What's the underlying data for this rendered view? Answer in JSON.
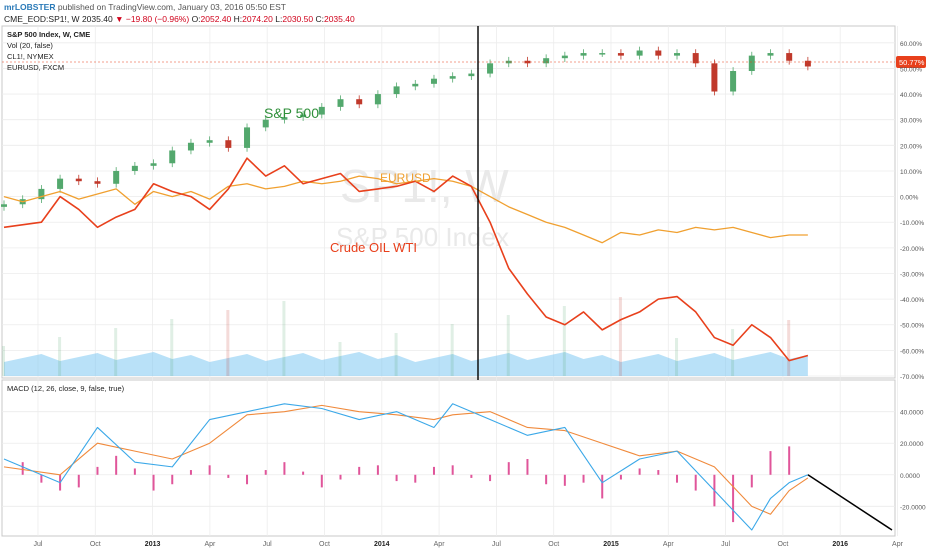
{
  "header": {
    "author": "mrLOBSTER",
    "published": "published on TradingView.com, January 03, 2016 05:50 EST",
    "symbol": "CME_EOD:SP1!, W",
    "last": "2035.40",
    "change": "−19.80 (−0.96%)",
    "o_label": "O:",
    "o": "2052.40",
    "h_label": "H:",
    "h": "2074.20",
    "l_label": "L:",
    "l": "2030.50",
    "c_label": "C:",
    "c": "2035.40"
  },
  "legend": [
    "S&P 500 Index, W, CME",
    "Vol (20, false)",
    "CL1!, NYMEX",
    "EURUSD, FXCM"
  ],
  "watermark": {
    "symbol": "SP1!, W",
    "name": "S&P 500 Index"
  },
  "annotations": {
    "sp500": "S&P 500",
    "eurusd": "EURUSD",
    "oil": "Crude OIL WTI"
  },
  "macd_label": "MACD (12, 26, close, 9, false, true)",
  "current_price_tag": "50.77%",
  "colors": {
    "candle_up": "#53a86d",
    "candle_down": "#c0392b",
    "oil": "#e8401c",
    "eurusd": "#f0a030",
    "macd": "#3ba8e8",
    "signal": "#f08a3c",
    "histogram": "#e0559a",
    "volume": "#7fc9f2",
    "price_tag": "#e8401c",
    "trend_line": "#000000"
  },
  "chart_data": [
    {
      "type": "line",
      "title": "S&P 500 Index, W, CME",
      "x_ticks": [
        "Jul",
        "Oct",
        "2013",
        "Apr",
        "Jul",
        "Oct",
        "2014",
        "Apr",
        "Jul",
        "Oct",
        "2015",
        "Apr",
        "Jul",
        "Oct",
        "2016",
        "Apr"
      ],
      "y_ticks": [
        "60.00%",
        "50.00%",
        "40.00%",
        "30.00%",
        "20.00%",
        "10.00%",
        "0.00%",
        "-10.00%",
        "-20.00%",
        "-30.00%",
        "-40.00%",
        "-50.00%",
        "-60.00%",
        "-70.00%"
      ],
      "ylim": [
        -70,
        65
      ],
      "y_unit": "%",
      "series": [
        {
          "name": "S&P 500 Index",
          "kind": "candles",
          "x": [
            0,
            1,
            2,
            3,
            4,
            5,
            6,
            7,
            8,
            9,
            10,
            11,
            12,
            13,
            14,
            15,
            16,
            17,
            18,
            19,
            20,
            21,
            22,
            23,
            24,
            25,
            26,
            27,
            28,
            29,
            30,
            31,
            32,
            33,
            34,
            35,
            36,
            37,
            38,
            39,
            40,
            41,
            42,
            43
          ],
          "values": [
            -3,
            -1,
            3,
            7,
            6,
            5,
            10,
            12,
            13,
            18,
            21,
            22,
            19,
            27,
            30,
            31,
            32,
            35,
            38,
            36,
            40,
            43,
            44,
            46,
            47,
            48,
            52,
            53,
            52,
            54,
            55,
            56,
            56,
            55,
            57,
            55,
            56,
            52,
            41,
            49,
            55,
            56,
            53,
            50.77
          ]
        },
        {
          "name": "CL1!, NYMEX",
          "kind": "line",
          "x": [
            0,
            2,
            3,
            4,
            5,
            6,
            7,
            8,
            9,
            10,
            11,
            12,
            13,
            14,
            15,
            16,
            17,
            18,
            19,
            20,
            21,
            22,
            23,
            24,
            25,
            26,
            27,
            28,
            29,
            30,
            31,
            32,
            33,
            34,
            35,
            36,
            37,
            38,
            39,
            40,
            41,
            42,
            43
          ],
          "values": [
            -12,
            -10,
            0,
            -5,
            -12,
            -8,
            -5,
            5,
            2,
            0,
            -5,
            3,
            15,
            8,
            12,
            5,
            7,
            9,
            2,
            3,
            4,
            6,
            2,
            8,
            4,
            -10,
            -28,
            -38,
            -47,
            -50,
            -45,
            -52,
            -48,
            -45,
            -40,
            -39,
            -45,
            -55,
            -58,
            -50,
            -55,
            -64,
            -62
          ]
        },
        {
          "name": "EURUSD, FXCM",
          "kind": "line",
          "x": [
            0,
            1,
            2,
            3,
            4,
            5,
            6,
            7,
            8,
            9,
            10,
            11,
            12,
            13,
            14,
            15,
            16,
            17,
            18,
            19,
            20,
            21,
            22,
            23,
            24,
            25,
            26,
            27,
            28,
            29,
            30,
            31,
            32,
            33,
            34,
            35,
            36,
            37,
            38,
            39,
            40,
            41,
            42,
            43
          ],
          "values": [
            0,
            -2,
            0,
            2,
            -1,
            1,
            3,
            -3,
            2,
            0,
            2,
            -1,
            4,
            5,
            3,
            4,
            6,
            5,
            6,
            8,
            7,
            5,
            6,
            7,
            6,
            4,
            0,
            -4,
            -7,
            -10,
            -12,
            -15,
            -18,
            -14,
            -15,
            -13,
            -14,
            -12,
            -13,
            -12,
            -14,
            -16,
            -15,
            -15
          ]
        }
      ]
    },
    {
      "type": "line",
      "title": "MACD (12, 26, close, 9, false, true)",
      "y_ticks": [
        "40.0000",
        "20.0000",
        "0.0000",
        "-20.0000"
      ],
      "ylim": [
        -35,
        55
      ],
      "series": [
        {
          "name": "MACD",
          "x": [
            0,
            3,
            5,
            7,
            9,
            11,
            13,
            15,
            17,
            19,
            21,
            23,
            24,
            26,
            28,
            30,
            32,
            34,
            36,
            38,
            40,
            41,
            42,
            43
          ],
          "values": [
            10,
            -5,
            30,
            8,
            5,
            35,
            40,
            45,
            42,
            35,
            40,
            30,
            45,
            35,
            25,
            30,
            -5,
            10,
            15,
            -10,
            -35,
            -15,
            -5,
            0
          ]
        },
        {
          "name": "Signal",
          "x": [
            0,
            3,
            5,
            7,
            9,
            11,
            13,
            15,
            17,
            19,
            21,
            23,
            24,
            26,
            28,
            30,
            32,
            34,
            36,
            38,
            40,
            41,
            42,
            43
          ],
          "values": [
            5,
            0,
            20,
            15,
            10,
            20,
            38,
            40,
            44,
            40,
            38,
            35,
            38,
            40,
            30,
            28,
            20,
            12,
            15,
            5,
            -20,
            -25,
            -10,
            -2
          ]
        },
        {
          "name": "Histogram",
          "kind": "bars",
          "x": [
            1,
            2,
            3,
            4,
            5,
            6,
            7,
            8,
            9,
            10,
            11,
            12,
            13,
            14,
            15,
            16,
            17,
            18,
            19,
            20,
            21,
            22,
            23,
            24,
            25,
            26,
            27,
            28,
            29,
            30,
            31,
            32,
            33,
            34,
            35,
            36,
            37,
            38,
            39,
            40,
            41,
            42
          ],
          "values": [
            8,
            -5,
            -10,
            -8,
            5,
            12,
            4,
            -10,
            -6,
            3,
            6,
            -2,
            -6,
            3,
            8,
            2,
            -8,
            -3,
            5,
            6,
            -4,
            -5,
            5,
            6,
            -2,
            -4,
            8,
            10,
            -6,
            -7,
            -5,
            -15,
            -3,
            4,
            3,
            -5,
            -10,
            -20,
            -30,
            -8,
            15,
            18
          ]
        },
        {
          "name": "Trend",
          "x": [
            43,
            47.5
          ],
          "values": [
            0,
            -35
          ]
        }
      ]
    }
  ]
}
